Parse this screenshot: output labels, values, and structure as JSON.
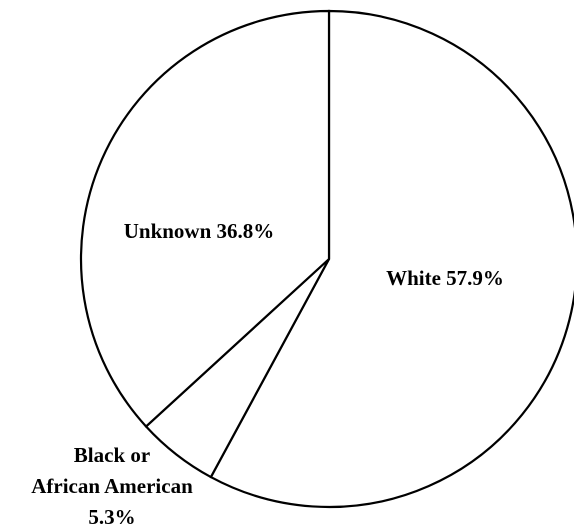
{
  "chart_data": {
    "type": "pie",
    "title": "",
    "start_angle_deg": 0,
    "direction": "clockwise",
    "slices": [
      {
        "label_lines": [
          "White 57.9%"
        ],
        "category": "White",
        "value": 57.9,
        "value_label": "57.9%"
      },
      {
        "label_lines": [
          "Black or",
          "African American",
          "5.3%"
        ],
        "category": "Black or African American",
        "value": 5.3,
        "value_label": "5.3%"
      },
      {
        "label_lines": [
          "Unknown 36.8%"
        ],
        "category": "Unknown",
        "value": 36.8,
        "value_label": "36.8%"
      }
    ],
    "fill_color": "#ffffff",
    "stroke_color": "#000000",
    "legend": "none"
  }
}
